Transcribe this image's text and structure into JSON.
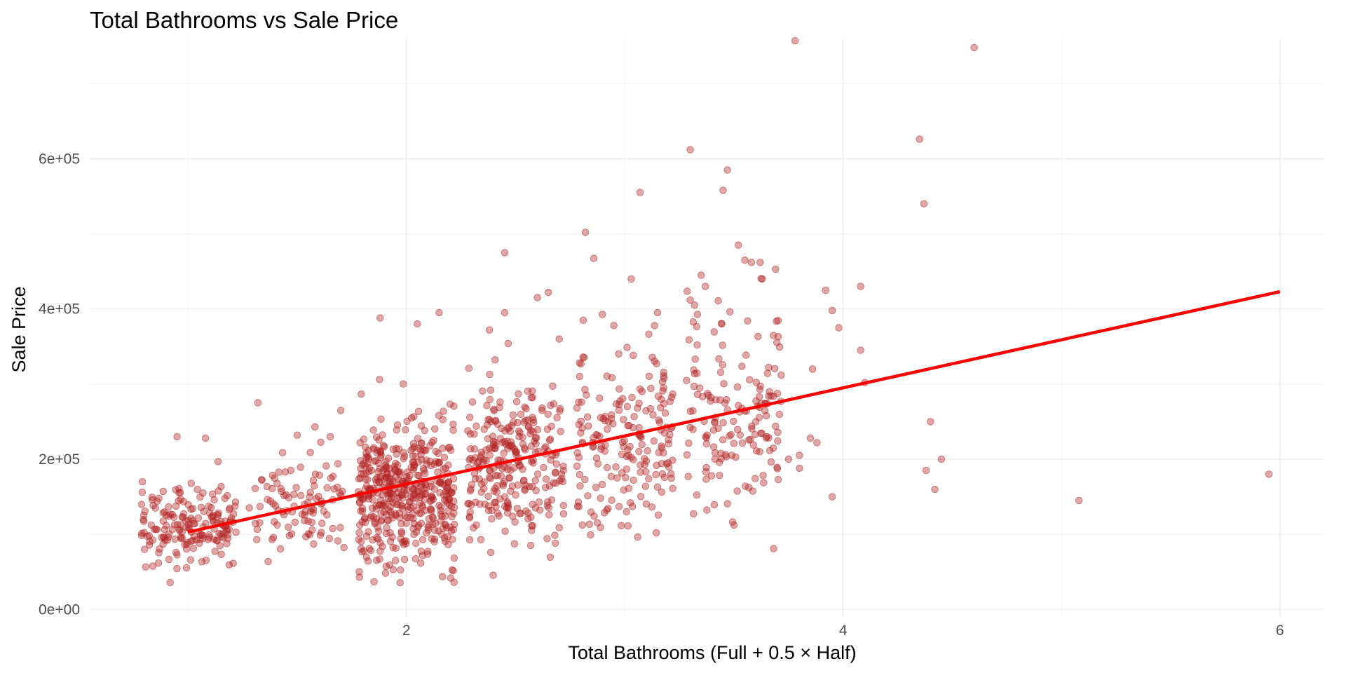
{
  "chart_data": {
    "type": "scatter",
    "title": "Total Bathrooms vs Sale Price",
    "xlabel": "Total Bathrooms (Full + 0.5 × Half)",
    "ylabel": "Sale Price",
    "xlim": [
      0.55,
      6.2
    ],
    "ylim": [
      -10000,
      760000
    ],
    "x_ticks": [
      2,
      4,
      6
    ],
    "x_tick_labels": [
      "2",
      "4",
      "6"
    ],
    "x_minor_ticks": [
      1,
      3,
      5
    ],
    "y_ticks": [
      0,
      200000,
      400000,
      600000
    ],
    "y_tick_labels": [
      "0e+00",
      "2e+05",
      "4e+05",
      "6e+05"
    ],
    "y_minor_ticks": [
      100000,
      300000,
      500000,
      700000
    ],
    "grid": true,
    "legend": "none",
    "point_color": "#b22222",
    "point_opacity": 0.4,
    "jitter_width": 0.22,
    "clusters": [
      {
        "x": 1.0,
        "n": 180,
        "y_center": 112000,
        "y_spread": 26000
      },
      {
        "x": 1.5,
        "n": 100,
        "y_center": 140000,
        "y_spread": 32000
      },
      {
        "x": 2.0,
        "n": 470,
        "y_center": 160000,
        "y_spread": 50000
      },
      {
        "x": 2.5,
        "n": 280,
        "y_center": 195000,
        "y_spread": 55000
      },
      {
        "x": 3.0,
        "n": 190,
        "y_center": 225000,
        "y_spread": 65000
      },
      {
        "x": 3.5,
        "n": 160,
        "y_center": 258000,
        "y_spread": 70000
      }
    ],
    "outliers": [
      {
        "x": 1.08,
        "y": 228000
      },
      {
        "x": 0.95,
        "y": 230000
      },
      {
        "x": 1.32,
        "y": 275000
      },
      {
        "x": 1.5,
        "y": 232000
      },
      {
        "x": 1.7,
        "y": 265000
      },
      {
        "x": 1.88,
        "y": 388000
      },
      {
        "x": 2.05,
        "y": 380000
      },
      {
        "x": 2.15,
        "y": 395000
      },
      {
        "x": 2.45,
        "y": 475000
      },
      {
        "x": 2.45,
        "y": 395000
      },
      {
        "x": 2.6,
        "y": 415000
      },
      {
        "x": 2.65,
        "y": 422000
      },
      {
        "x": 2.38,
        "y": 372000
      },
      {
        "x": 2.7,
        "y": 360000
      },
      {
        "x": 2.82,
        "y": 502000
      },
      {
        "x": 2.81,
        "y": 385000
      },
      {
        "x": 2.95,
        "y": 378000
      },
      {
        "x": 3.03,
        "y": 440000
      },
      {
        "x": 3.07,
        "y": 555000
      },
      {
        "x": 3.15,
        "y": 395000
      },
      {
        "x": 3.3,
        "y": 612000
      },
      {
        "x": 3.35,
        "y": 445000
      },
      {
        "x": 3.3,
        "y": 412000
      },
      {
        "x": 3.45,
        "y": 558000
      },
      {
        "x": 3.47,
        "y": 585000
      },
      {
        "x": 3.52,
        "y": 485000
      },
      {
        "x": 3.55,
        "y": 465000
      },
      {
        "x": 3.62,
        "y": 462000
      },
      {
        "x": 3.63,
        "y": 440000
      },
      {
        "x": 3.78,
        "y": 757000
      },
      {
        "x": 3.75,
        "y": 200000
      },
      {
        "x": 3.8,
        "y": 188000
      },
      {
        "x": 3.85,
        "y": 228000
      },
      {
        "x": 3.88,
        "y": 222000
      },
      {
        "x": 3.92,
        "y": 425000
      },
      {
        "x": 3.95,
        "y": 398000
      },
      {
        "x": 3.98,
        "y": 375000
      },
      {
        "x": 3.86,
        "y": 320000
      },
      {
        "x": 3.95,
        "y": 150000
      },
      {
        "x": 3.8,
        "y": 205000
      },
      {
        "x": 4.08,
        "y": 430000
      },
      {
        "x": 4.08,
        "y": 345000
      },
      {
        "x": 4.1,
        "y": 302000
      },
      {
        "x": 4.35,
        "y": 626000
      },
      {
        "x": 4.37,
        "y": 540000
      },
      {
        "x": 4.38,
        "y": 185000
      },
      {
        "x": 4.4,
        "y": 250000
      },
      {
        "x": 4.42,
        "y": 160000
      },
      {
        "x": 4.45,
        "y": 200000
      },
      {
        "x": 4.6,
        "y": 748000
      },
      {
        "x": 5.08,
        "y": 145000
      },
      {
        "x": 5.95,
        "y": 180000
      }
    ],
    "trend_line": {
      "x": [
        1.0,
        6.0
      ],
      "y": [
        103000,
        423000
      ],
      "color": "#ff0000"
    }
  }
}
